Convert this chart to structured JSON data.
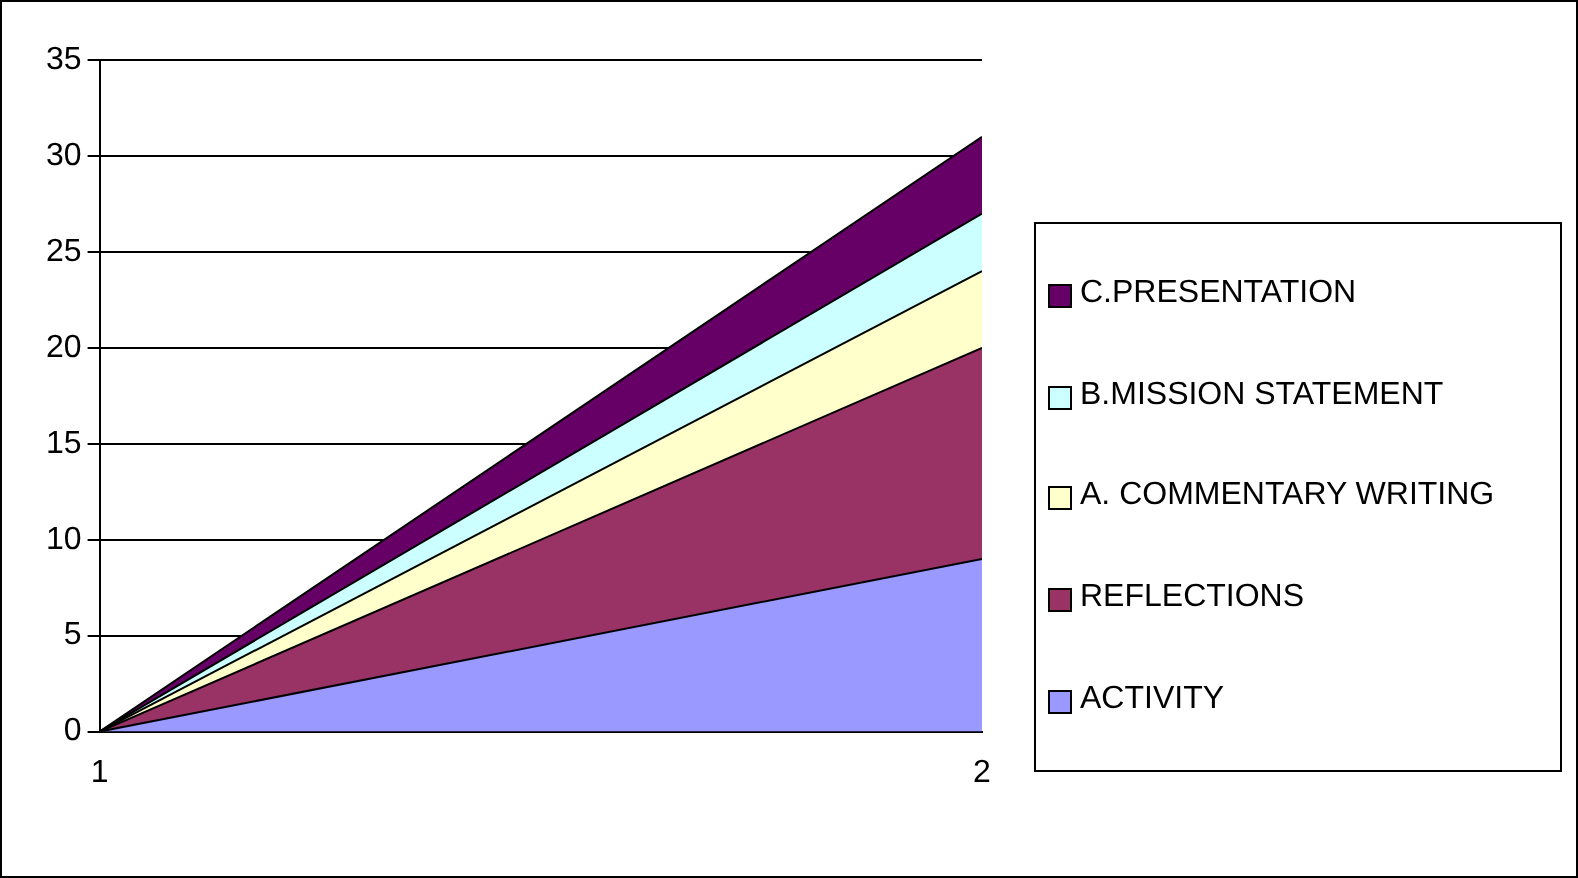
{
  "chart_data": {
    "type": "area",
    "stacked": true,
    "x": [
      1,
      2
    ],
    "xlim": [
      1,
      2
    ],
    "xticks": [
      1,
      2
    ],
    "series": [
      {
        "name": "ACTIVITY",
        "color": "#9999ff",
        "values": [
          0,
          9
        ]
      },
      {
        "name": "REFLECTIONS",
        "color": "#993366",
        "values": [
          0,
          11
        ]
      },
      {
        "name": "A.  COMMENTARY WRITING",
        "color": "#ffffcc",
        "values": [
          0,
          4
        ]
      },
      {
        "name": "B.MISSION STATEMENT",
        "color": "#ccffff",
        "values": [
          0,
          3
        ]
      },
      {
        "name": "C.PRESENTATION",
        "color": "#660066",
        "values": [
          0,
          4
        ]
      }
    ],
    "ylim": [
      0,
      35
    ],
    "yticks": [
      0,
      5,
      10,
      15,
      20,
      25,
      30,
      35
    ],
    "grid": "y",
    "legend": "right"
  }
}
